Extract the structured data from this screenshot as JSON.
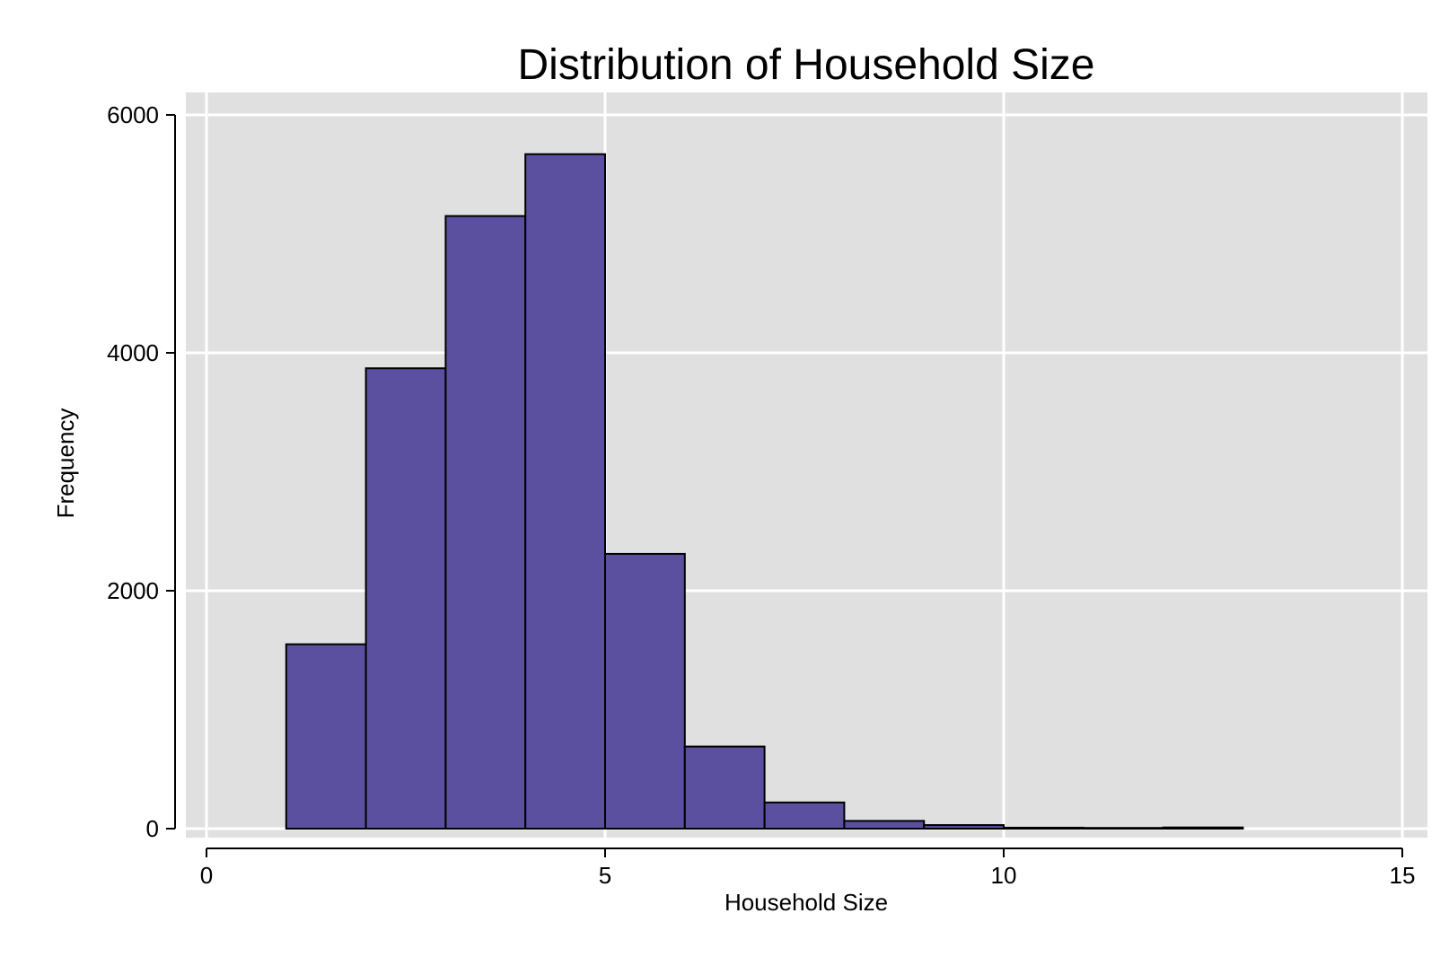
{
  "chart_data": {
    "type": "bar",
    "title": "Distribution of Household Size",
    "xlabel": "Household Size",
    "ylabel": "Frequency",
    "xlim": [
      -0.25,
      15.25
    ],
    "ylim": [
      0,
      6000
    ],
    "x_ticks": [
      0,
      5,
      10,
      15
    ],
    "y_ticks": [
      0,
      2000,
      4000,
      6000
    ],
    "grid": true,
    "colors": {
      "bar_fill": "#5b4f9f",
      "bar_edge": "#000000",
      "plot_background": "#e0e0e0",
      "grid": "#ffffff"
    },
    "bins": [
      {
        "x0": 1,
        "x1": 2,
        "value": 1550
      },
      {
        "x0": 2,
        "x1": 3,
        "value": 3870
      },
      {
        "x0": 3,
        "x1": 4,
        "value": 5150
      },
      {
        "x0": 4,
        "x1": 5,
        "value": 5670
      },
      {
        "x0": 5,
        "x1": 6,
        "value": 2310
      },
      {
        "x0": 6,
        "x1": 7,
        "value": 690
      },
      {
        "x0": 7,
        "x1": 8,
        "value": 220
      },
      {
        "x0": 8,
        "x1": 9,
        "value": 65
      },
      {
        "x0": 9,
        "x1": 10,
        "value": 30
      },
      {
        "x0": 10,
        "x1": 11,
        "value": 8
      },
      {
        "x0": 11,
        "x1": 12,
        "value": 6
      },
      {
        "x0": 12,
        "x1": 13,
        "value": 10
      }
    ]
  }
}
